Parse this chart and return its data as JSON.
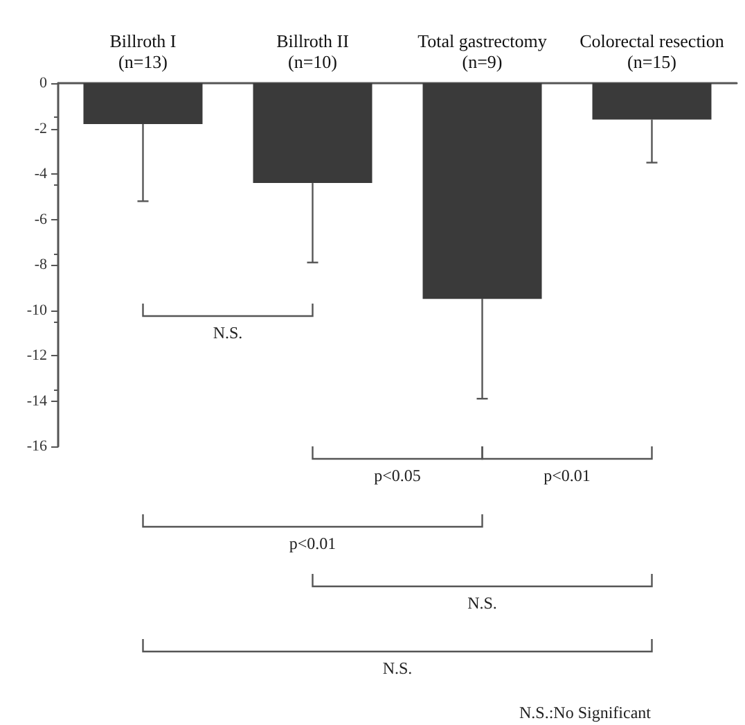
{
  "chart_data": {
    "type": "bar",
    "categories": [
      "Billroth I\n(n=13)",
      "Billroth II\n(n=10)",
      "Total gastrectomy\n(n=9)",
      "Colorectal resection\n(n=15)"
    ],
    "values": [
      -1.8,
      -4.4,
      -9.5,
      -1.6
    ],
    "errors": [
      [
        -5.2,
        -1.8
      ],
      [
        -7.9,
        -4.4
      ],
      [
        -13.9,
        -9.5
      ],
      [
        -3.5,
        -1.6
      ]
    ],
    "color": "#3a3a3a",
    "ylim": [
      -16,
      0
    ],
    "yticks": [
      0,
      -2,
      -4,
      -6,
      -8,
      -10,
      -12,
      -14,
      -16
    ],
    "grid": false,
    "annotations": [
      "N.S.",
      "p<0.05",
      "p<0.01",
      "p<0.01",
      "N.S.",
      "N.S.",
      "N.S.:No Significant"
    ]
  }
}
